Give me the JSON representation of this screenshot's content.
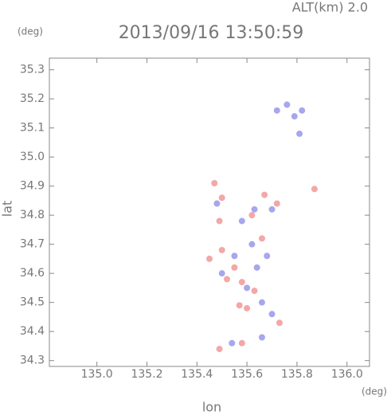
{
  "chart_data": {
    "type": "scatter",
    "title": "2013/09/16 13:50:59",
    "subtitle": "ALT(km)  2.0",
    "x_label": "lon",
    "y_label": "lat",
    "x_unit": "(deg)",
    "y_unit": "(deg)",
    "xlim": [
      134.81,
      136.09
    ],
    "ylim": [
      34.28,
      35.34
    ],
    "xticks": [
      {
        "value": 135.0,
        "label": "135.0"
      },
      135.2,
      135.4,
      135.6,
      135.8,
      {
        "value": 136.0,
        "label": "136.0"
      }
    ],
    "yticks": [
      34.3,
      34.4,
      34.5,
      34.6,
      34.7,
      34.8,
      34.9,
      {
        "value": 35.0,
        "label": "35.0"
      },
      35.1,
      35.2,
      35.3
    ],
    "series": [
      {
        "color": "#8a8ae8",
        "x": [
          135.72,
          135.76,
          135.79,
          135.82,
          135.81,
          135.58,
          135.63,
          135.68,
          135.64,
          135.6,
          135.66,
          135.7,
          135.55,
          135.5,
          135.7,
          135.48,
          135.62,
          135.54,
          135.66
        ],
        "values": [
          35.16,
          35.18,
          35.14,
          35.16,
          35.08,
          34.78,
          34.82,
          34.66,
          34.62,
          34.55,
          34.5,
          34.46,
          34.66,
          34.6,
          34.82,
          34.84,
          34.7,
          34.36,
          34.38
        ]
      },
      {
        "color": "#f08a8a",
        "x": [
          135.47,
          135.5,
          135.49,
          135.62,
          135.67,
          135.72,
          135.87,
          135.5,
          135.55,
          135.58,
          135.63,
          135.57,
          135.6,
          135.73,
          135.45,
          135.52,
          135.66,
          135.58,
          135.49
        ],
        "values": [
          34.91,
          34.86,
          34.78,
          34.8,
          34.87,
          34.84,
          34.89,
          34.68,
          34.62,
          34.57,
          34.54,
          34.49,
          34.48,
          34.43,
          34.65,
          34.58,
          34.72,
          34.36,
          34.34
        ]
      }
    ]
  }
}
